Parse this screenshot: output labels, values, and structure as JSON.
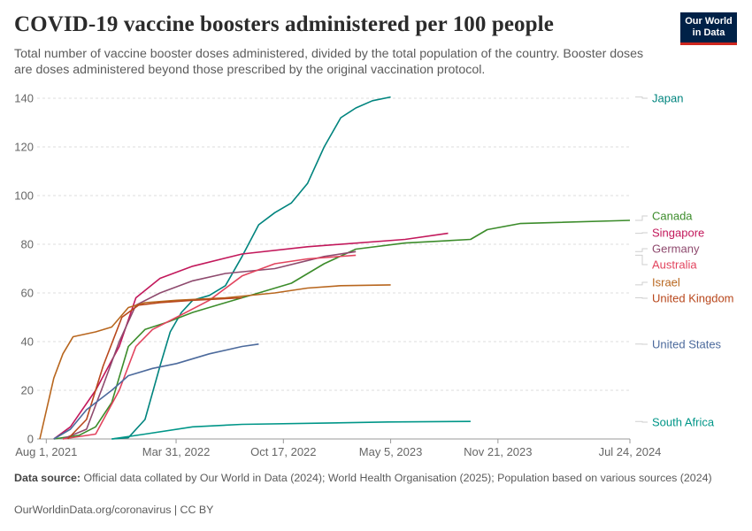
{
  "header": {
    "title": "COVID-19 vaccine boosters administered per 100 people",
    "subtitle": "Total number of vaccine booster doses administered, divided by the total population of the country. Booster doses are doses administered beyond those prescribed by the original vaccination protocol.",
    "logo_line1": "Our World",
    "logo_line2": "in Data"
  },
  "footer": {
    "source_label": "Data source:",
    "source_text": "Official data collated by Our World in Data (2024); World Health Organisation (2025); Population based on various sources (2024)",
    "link_text": "OurWorldinData.org/coronavirus | CC BY"
  },
  "chart_data": {
    "type": "line",
    "title": "COVID-19 vaccine boosters administered per 100 people",
    "ylim": [
      0,
      140
    ],
    "yticks": [
      0,
      20,
      40,
      60,
      80,
      100,
      120,
      140
    ],
    "xticks": [
      "2021-08-01",
      "2022-03-31",
      "2022-10-17",
      "2023-05-05",
      "2023-11-21",
      "2024-07-24"
    ],
    "xtick_labels": [
      "Aug 1, 2021",
      "Mar 31, 2022",
      "Oct 17, 2022",
      "May 5, 2023",
      "Nov 21, 2023",
      "Jul 24, 2024"
    ],
    "xlim": [
      "2021-07-15",
      "2024-07-24"
    ],
    "grid": "horizontal dashed",
    "legend": "right",
    "series": [
      {
        "name": "Japan",
        "color": "#00847e",
        "points": [
          [
            "2021-12-01",
            0
          ],
          [
            "2022-01-01",
            0.5
          ],
          [
            "2022-02-01",
            8
          ],
          [
            "2022-03-01",
            30
          ],
          [
            "2022-03-20",
            44
          ],
          [
            "2022-04-10",
            52
          ],
          [
            "2022-05-01",
            57
          ],
          [
            "2022-06-01",
            59
          ],
          [
            "2022-07-01",
            63
          ],
          [
            "2022-08-01",
            75
          ],
          [
            "2022-09-01",
            88
          ],
          [
            "2022-10-01",
            93
          ],
          [
            "2022-11-01",
            97
          ],
          [
            "2022-12-01",
            105
          ],
          [
            "2023-01-01",
            120
          ],
          [
            "2023-02-01",
            132
          ],
          [
            "2023-03-01",
            136
          ],
          [
            "2023-04-01",
            139
          ],
          [
            "2023-05-05",
            140.5
          ]
        ]
      },
      {
        "name": "Canada",
        "color": "#3c8c2b",
        "points": [
          [
            "2021-08-15",
            0
          ],
          [
            "2021-10-01",
            1.5
          ],
          [
            "2021-11-01",
            5
          ],
          [
            "2021-12-01",
            15
          ],
          [
            "2022-01-01",
            38
          ],
          [
            "2022-02-01",
            45
          ],
          [
            "2022-03-15",
            48
          ],
          [
            "2022-05-01",
            52
          ],
          [
            "2022-07-01",
            56
          ],
          [
            "2022-09-01",
            60
          ],
          [
            "2022-11-01",
            64
          ],
          [
            "2023-01-01",
            72
          ],
          [
            "2023-03-01",
            78
          ],
          [
            "2023-06-01",
            80.5
          ],
          [
            "2023-10-01",
            82
          ],
          [
            "2023-11-01",
            86
          ],
          [
            "2024-01-01",
            88.5
          ],
          [
            "2024-07-24",
            89.8
          ]
        ]
      },
      {
        "name": "Singapore",
        "color": "#c2185b",
        "points": [
          [
            "2021-08-15",
            0
          ],
          [
            "2021-09-15",
            5
          ],
          [
            "2021-11-01",
            20
          ],
          [
            "2021-12-15",
            38
          ],
          [
            "2022-01-15",
            58
          ],
          [
            "2022-03-01",
            66
          ],
          [
            "2022-05-01",
            71
          ],
          [
            "2022-08-01",
            76
          ],
          [
            "2022-12-01",
            79
          ],
          [
            "2023-06-01",
            82
          ],
          [
            "2023-08-20",
            84.5
          ]
        ]
      },
      {
        "name": "Germany",
        "color": "#8e4a6e",
        "points": [
          [
            "2021-09-01",
            0
          ],
          [
            "2021-10-15",
            4
          ],
          [
            "2021-11-15",
            22
          ],
          [
            "2021-12-15",
            40
          ],
          [
            "2022-01-15",
            55
          ],
          [
            "2022-03-01",
            60
          ],
          [
            "2022-05-01",
            65
          ],
          [
            "2022-07-01",
            68
          ],
          [
            "2022-10-01",
            70
          ],
          [
            "2023-01-01",
            75
          ],
          [
            "2023-03-01",
            77
          ]
        ]
      },
      {
        "name": "Australia",
        "color": "#e2445e",
        "points": [
          [
            "2021-09-01",
            0
          ],
          [
            "2021-11-01",
            2
          ],
          [
            "2021-12-15",
            20
          ],
          [
            "2022-01-15",
            38
          ],
          [
            "2022-02-15",
            45
          ],
          [
            "2022-04-01",
            50
          ],
          [
            "2022-06-01",
            57
          ],
          [
            "2022-08-01",
            67
          ],
          [
            "2022-10-01",
            72
          ],
          [
            "2022-12-01",
            74
          ],
          [
            "2023-03-01",
            75.5
          ]
        ]
      },
      {
        "name": "Israel",
        "color": "#b8661e",
        "points": [
          [
            "2021-07-20",
            0
          ],
          [
            "2021-08-15",
            25
          ],
          [
            "2021-09-01",
            35
          ],
          [
            "2021-09-20",
            42
          ],
          [
            "2021-11-01",
            44
          ],
          [
            "2021-12-01",
            46
          ],
          [
            "2022-01-01",
            54
          ],
          [
            "2022-02-01",
            56
          ],
          [
            "2022-04-01",
            57
          ],
          [
            "2022-07-01",
            58
          ],
          [
            "2022-10-01",
            60
          ],
          [
            "2022-12-01",
            62
          ],
          [
            "2023-02-01",
            63
          ],
          [
            "2023-05-05",
            63.3
          ]
        ]
      },
      {
        "name": "United Kingdom",
        "color": "#b8471c",
        "points": [
          [
            "2021-09-10",
            0
          ],
          [
            "2021-10-15",
            8
          ],
          [
            "2021-11-15",
            30
          ],
          [
            "2021-12-20",
            50
          ],
          [
            "2022-01-20",
            55
          ],
          [
            "2022-03-01",
            56
          ],
          [
            "2022-05-01",
            57
          ],
          [
            "2022-08-01",
            58
          ]
        ]
      },
      {
        "name": "United States",
        "color": "#4c6a9c",
        "points": [
          [
            "2021-08-15",
            0
          ],
          [
            "2021-09-15",
            4
          ],
          [
            "2021-10-15",
            12
          ],
          [
            "2021-12-01",
            20
          ],
          [
            "2022-01-01",
            26
          ],
          [
            "2022-02-15",
            29
          ],
          [
            "2022-04-01",
            31
          ],
          [
            "2022-06-01",
            35
          ],
          [
            "2022-08-01",
            38
          ],
          [
            "2022-09-01",
            39
          ]
        ]
      },
      {
        "name": "South Africa",
        "color": "#009688",
        "points": [
          [
            "2021-12-01",
            0
          ],
          [
            "2022-02-01",
            2
          ],
          [
            "2022-05-01",
            5
          ],
          [
            "2022-08-01",
            6
          ],
          [
            "2023-01-01",
            6.5
          ],
          [
            "2023-05-01",
            7
          ],
          [
            "2023-10-01",
            7.2
          ]
        ]
      }
    ]
  }
}
